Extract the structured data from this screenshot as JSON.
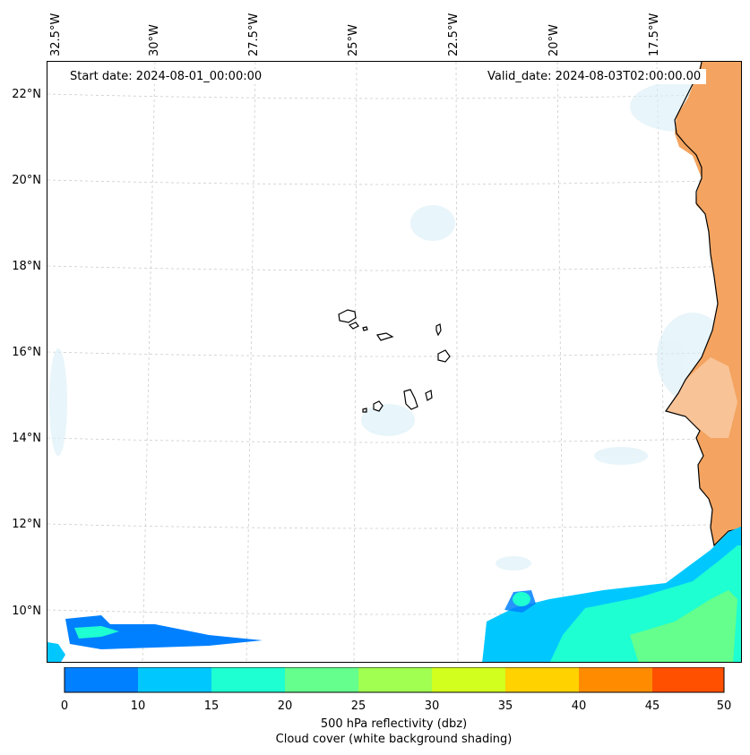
{
  "header": {
    "start_date": "Start date: 2024-08-01_00:00:00",
    "valid_date": "Valid_date: 2024-08-03T02:00:00.00"
  },
  "lon_labels": [
    "32.5°W",
    "30°W",
    "27.5°W",
    "25°W",
    "22.5°W",
    "20°W",
    "17.5°W"
  ],
  "lat_labels": [
    "22°N",
    "20°N",
    "18°N",
    "16°N",
    "14°N",
    "12°N",
    "10°N"
  ],
  "colorbar": {
    "ticks": [
      "0",
      "10",
      "15",
      "20",
      "25",
      "30",
      "35",
      "40",
      "45",
      "50"
    ],
    "colors": [
      "#0080ff",
      "#00c8ff",
      "#1effd2",
      "#64ff8c",
      "#a0ff50",
      "#d2ff1e",
      "#ffd200",
      "#ff8c00",
      "#ff5000"
    ],
    "label_line1": "500 hPa reflectivity (dbz)",
    "label_line2": "Cloud cover (white background shading)"
  },
  "theme": {
    "land_color": "#f4a460",
    "cloud_color": "#d8eef6",
    "grid_color": "#cccccc",
    "coast_color": "#000000"
  }
}
